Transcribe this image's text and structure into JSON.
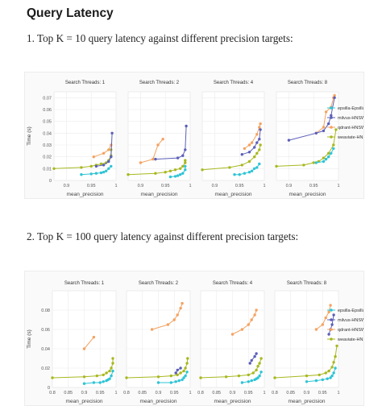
{
  "page": {
    "heading": "Query Latency",
    "caption1": "1. Top K = 10 query latency against different precision targets:",
    "caption2": "2. Top K = 100 query latency against different precision targets:"
  },
  "colors": {
    "epsilla-Epsilla": "#2ec4d6",
    "milvus-HNSW": "#5b5fb8",
    "qdrant-HNSW": "#f4a261",
    "weaviate-HNSW": "#a8b820"
  },
  "chart_data": [
    {
      "type": "scatter",
      "title": "Top K = 10",
      "ylabel": "Time (s)",
      "xlabel": "mean_precision",
      "ylim": [
        0,
        0.075
      ],
      "yticks": [
        0,
        0.01,
        0.02,
        0.03,
        0.04,
        0.05,
        0.06,
        0.07
      ],
      "ytick_labels": [
        "0",
        "0.01",
        "0.02",
        "0.03",
        "0.04",
        "0.05",
        "0.06",
        "0.07"
      ],
      "xlim": [
        0.875,
        1.0
      ],
      "xticks": [
        0.9,
        0.95,
        1
      ],
      "xtick_labels": [
        "0.9",
        "0.95",
        "1"
      ],
      "legend": [
        "epsilla-Epsilla",
        "milvus-HNSW",
        "qdrant-HNSW",
        "weaviate-HNSW"
      ],
      "legend_position": "right",
      "panels": [
        {
          "title": "Search Threads: 1",
          "series": [
            {
              "name": "weaviate-HNSW",
              "x": [
                0.875,
                0.93,
                0.95,
                0.96,
                0.97,
                0.98,
                0.985,
                0.99,
                0.99
              ],
              "y": [
                0.01,
                0.011,
                0.012,
                0.013,
                0.014,
                0.015,
                0.017,
                0.021,
                0.026
              ]
            },
            {
              "name": "qdrant-HNSW",
              "x": [
                0.955,
                0.975,
                0.985,
                0.99
              ],
              "y": [
                0.02,
                0.023,
                0.026,
                0.03
              ]
            },
            {
              "name": "milvus-HNSW",
              "x": [
                0.96,
                0.975,
                0.985,
                0.99,
                0.992
              ],
              "y": [
                0.012,
                0.013,
                0.016,
                0.02,
                0.04
              ]
            },
            {
              "name": "epsilla-Epsilla",
              "x": [
                0.93,
                0.95,
                0.96,
                0.97,
                0.975,
                0.98,
                0.985,
                0.99
              ],
              "y": [
                0.005,
                0.0055,
                0.006,
                0.0065,
                0.007,
                0.008,
                0.01,
                0.012
              ]
            }
          ]
        },
        {
          "title": "Search Threads: 2",
          "series": [
            {
              "name": "weaviate-HNSW",
              "x": [
                0.875,
                0.93,
                0.95,
                0.96,
                0.97,
                0.98,
                0.985,
                0.99,
                0.99
              ],
              "y": [
                0.005,
                0.006,
                0.007,
                0.008,
                0.009,
                0.01,
                0.012,
                0.015,
                0.017
              ]
            },
            {
              "name": "qdrant-HNSW",
              "x": [
                0.9,
                0.925,
                0.935,
                0.945
              ],
              "y": [
                0.015,
                0.018,
                0.03,
                0.035
              ]
            },
            {
              "name": "milvus-HNSW",
              "x": [
                0.93,
                0.975,
                0.985,
                0.99,
                0.992
              ],
              "y": [
                0.018,
                0.019,
                0.021,
                0.026,
                0.046
              ]
            },
            {
              "name": "epsilla-Epsilla",
              "x": [
                0.96,
                0.97,
                0.975,
                0.98,
                0.985,
                0.99,
                0.99
              ],
              "y": [
                0.003,
                0.0035,
                0.004,
                0.005,
                0.006,
                0.009,
                0.012
              ]
            }
          ]
        },
        {
          "title": "Search Threads: 4",
          "series": [
            {
              "name": "weaviate-HNSW",
              "x": [
                0.875,
                0.93,
                0.955,
                0.97,
                0.98,
                0.985,
                0.99,
                0.992
              ],
              "y": [
                0.009,
                0.011,
                0.013,
                0.016,
                0.02,
                0.023,
                0.026,
                0.03
              ]
            },
            {
              "name": "qdrant-HNSW",
              "x": [
                0.96,
                0.97,
                0.975,
                0.985,
                0.99,
                0.992
              ],
              "y": [
                0.027,
                0.03,
                0.032,
                0.039,
                0.045,
                0.048
              ]
            },
            {
              "name": "milvus-HNSW",
              "x": [
                0.955,
                0.97,
                0.98,
                0.985,
                0.99,
                0.992
              ],
              "y": [
                0.022,
                0.024,
                0.028,
                0.032,
                0.035,
                0.043
              ]
            },
            {
              "name": "epsilla-Epsilla",
              "x": [
                0.94,
                0.95,
                0.96,
                0.97,
                0.975,
                0.98,
                0.985,
                0.99
              ],
              "y": [
                0.005,
                0.005,
                0.006,
                0.007,
                0.008,
                0.01,
                0.011,
                0.014
              ]
            }
          ]
        },
        {
          "title": "Search Threads: 8",
          "series": [
            {
              "name": "weaviate-HNSW",
              "x": [
                0.875,
                0.93,
                0.95,
                0.96,
                0.97,
                0.98,
                0.99,
                0.995
              ],
              "y": [
                0.012,
                0.013,
                0.015,
                0.016,
                0.019,
                0.023,
                0.03,
                0.043
              ]
            },
            {
              "name": "qdrant-HNSW",
              "x": [
                0.955,
                0.97,
                0.975,
                0.985,
                0.99,
                0.992
              ],
              "y": [
                0.04,
                0.045,
                0.058,
                0.062,
                0.07,
                0.072
              ]
            },
            {
              "name": "milvus-HNSW",
              "x": [
                0.9,
                0.955,
                0.97,
                0.98,
                0.985,
                0.992
              ],
              "y": [
                0.034,
                0.04,
                0.042,
                0.048,
                0.055,
                0.07
              ]
            },
            {
              "name": "epsilla-Epsilla",
              "x": [
                0.955,
                0.97,
                0.975,
                0.98,
                0.985,
                0.99
              ],
              "y": [
                0.015,
                0.016,
                0.018,
                0.02,
                0.023,
                0.027
              ]
            }
          ]
        }
      ]
    },
    {
      "type": "scatter",
      "title": "Top K = 100",
      "ylabel": "Time (s)",
      "xlabel": "mean_precision",
      "ylim": [
        0,
        0.1
      ],
      "yticks": [
        0,
        0.02,
        0.04,
        0.06,
        0.08
      ],
      "ytick_labels": [
        "0",
        "0.02",
        "0.04",
        "0.06",
        "0.08"
      ],
      "xlim": [
        0.8,
        1.0
      ],
      "xticks": [
        0.8,
        0.85,
        0.9,
        0.95,
        1
      ],
      "xtick_labels": [
        "0.8",
        "0.85",
        "0.9",
        "0.95",
        "1"
      ],
      "legend": [
        "epsilla-Epsilla",
        "milvus-HNSW",
        "qdrant-HNSW",
        "weaviate-HNSW"
      ],
      "legend_position": "right",
      "panels": [
        {
          "title": "Search Threads: 1",
          "series": [
            {
              "name": "weaviate-HNSW",
              "x": [
                0.8,
                0.9,
                0.94,
                0.96,
                0.97,
                0.98,
                0.985,
                0.99,
                0.99
              ],
              "y": [
                0.01,
                0.011,
                0.012,
                0.013,
                0.015,
                0.017,
                0.02,
                0.025,
                0.03
              ]
            },
            {
              "name": "qdrant-HNSW",
              "x": [
                0.9,
                0.93
              ],
              "y": [
                0.04,
                0.052
              ]
            },
            {
              "name": "epsilla-Epsilla",
              "x": [
                0.9,
                0.93,
                0.95,
                0.96,
                0.97,
                0.975,
                0.98,
                0.985,
                0.99
              ],
              "y": [
                0.004,
                0.005,
                0.005,
                0.006,
                0.007,
                0.008,
                0.009,
                0.012,
                0.017
              ]
            }
          ]
        },
        {
          "title": "Search Threads: 2",
          "series": [
            {
              "name": "weaviate-HNSW",
              "x": [
                0.8,
                0.9,
                0.94,
                0.96,
                0.97,
                0.98,
                0.985,
                0.99,
                0.992
              ],
              "y": [
                0.01,
                0.011,
                0.012,
                0.013,
                0.015,
                0.017,
                0.02,
                0.025,
                0.03
              ]
            },
            {
              "name": "qdrant-HNSW",
              "x": [
                0.88,
                0.93,
                0.95,
                0.96,
                0.97,
                0.975
              ],
              "y": [
                0.06,
                0.065,
                0.07,
                0.075,
                0.082,
                0.087
              ]
            },
            {
              "name": "milvus-HNSW",
              "x": [
                0.955,
                0.96,
                0.97
              ],
              "y": [
                0.015,
                0.018,
                0.02
              ]
            },
            {
              "name": "epsilla-Epsilla",
              "x": [
                0.9,
                0.94,
                0.955,
                0.965,
                0.975,
                0.98,
                0.985,
                0.99
              ],
              "y": [
                0.005,
                0.005,
                0.006,
                0.007,
                0.008,
                0.01,
                0.012,
                0.016
              ]
            }
          ]
        },
        {
          "title": "Search Threads: 4",
          "series": [
            {
              "name": "weaviate-HNSW",
              "x": [
                0.8,
                0.88,
                0.92,
                0.95,
                0.965,
                0.975,
                0.98,
                0.985,
                0.99
              ],
              "y": [
                0.01,
                0.011,
                0.012,
                0.013,
                0.015,
                0.018,
                0.022,
                0.025,
                0.03
              ]
            },
            {
              "name": "qdrant-HNSW",
              "x": [
                0.9,
                0.93,
                0.95,
                0.96,
                0.97,
                0.975
              ],
              "y": [
                0.055,
                0.06,
                0.065,
                0.07,
                0.075,
                0.08
              ]
            },
            {
              "name": "milvus-HNSW",
              "x": [
                0.955,
                0.96,
                0.97,
                0.975
              ],
              "y": [
                0.025,
                0.028,
                0.032,
                0.035
              ]
            },
            {
              "name": "epsilla-Epsilla",
              "x": [
                0.93,
                0.95,
                0.96,
                0.97,
                0.975,
                0.98,
                0.985,
                0.99
              ],
              "y": [
                0.005,
                0.006,
                0.007,
                0.008,
                0.009,
                0.01,
                0.012,
                0.016
              ]
            }
          ]
        },
        {
          "title": "Search Threads: 8",
          "series": [
            {
              "name": "weaviate-HNSW",
              "x": [
                0.8,
                0.9,
                0.94,
                0.96,
                0.97,
                0.98,
                0.985,
                0.99,
                0.995
              ],
              "y": [
                0.01,
                0.012,
                0.013,
                0.015,
                0.017,
                0.021,
                0.026,
                0.032,
                0.043
              ]
            },
            {
              "name": "qdrant-HNSW",
              "x": [
                0.93,
                0.95,
                0.96,
                0.97,
                0.975
              ],
              "y": [
                0.06,
                0.065,
                0.072,
                0.078,
                0.085
              ]
            },
            {
              "name": "milvus-HNSW",
              "x": [
                0.97,
                0.975,
                0.98,
                0.985
              ],
              "y": [
                0.055,
                0.06,
                0.065,
                0.075
              ]
            },
            {
              "name": "epsilla-Epsilla",
              "x": [
                0.9,
                0.93,
                0.95,
                0.965,
                0.975,
                0.98,
                0.985,
                0.99
              ],
              "y": [
                0.006,
                0.007,
                0.008,
                0.009,
                0.01,
                0.012,
                0.015,
                0.02
              ]
            }
          ]
        }
      ]
    }
  ]
}
